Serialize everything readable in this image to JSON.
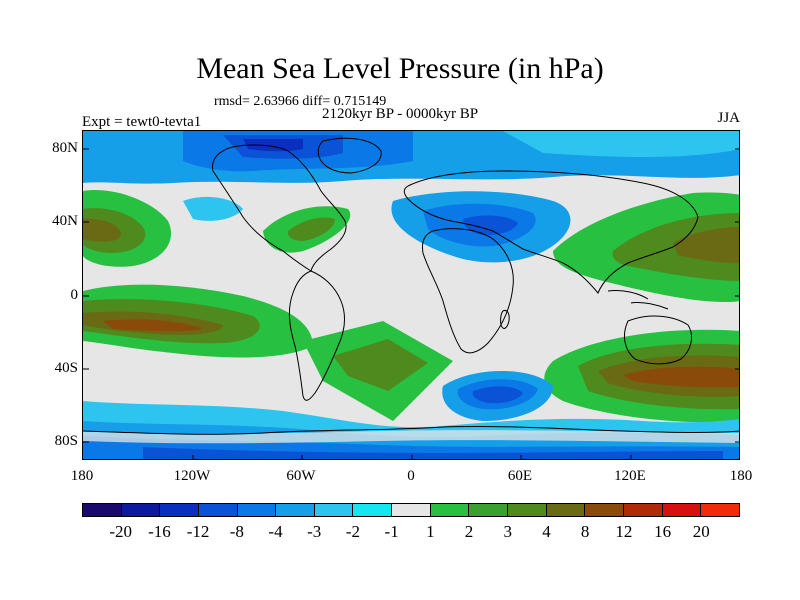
{
  "title": "Mean Sea Level Pressure (in hPa)",
  "stats": "rmsd= 2.63966 diff= 0.715149",
  "period": "2120kyr BP - 0000kyr BP",
  "expt": "Expt = tewt0-tevta1",
  "season": "JJA",
  "y_labels": [
    "80N",
    "40N",
    "0",
    "40S",
    "80S"
  ],
  "x_labels": [
    "180",
    "120W",
    "60W",
    "0",
    "60E",
    "120E",
    "180"
  ],
  "colorbar": {
    "labels": [
      "-20",
      "-16",
      "-12",
      "-8",
      "-4",
      "-3",
      "-2",
      "-1",
      "1",
      "2",
      "3",
      "4",
      "8",
      "12",
      "16",
      "20"
    ],
    "colors": [
      "#1a0a6e",
      "#0d1aa0",
      "#0a2fc0",
      "#0a52d6",
      "#0a78e6",
      "#149fe8",
      "#2ec4f0",
      "#16e6f0",
      "#e6e6e6",
      "#28c040",
      "#3aa030",
      "#4e8a1e",
      "#6a6a14",
      "#8a4a0a",
      "#b02a08",
      "#d61010",
      "#f02a0a"
    ]
  }
}
